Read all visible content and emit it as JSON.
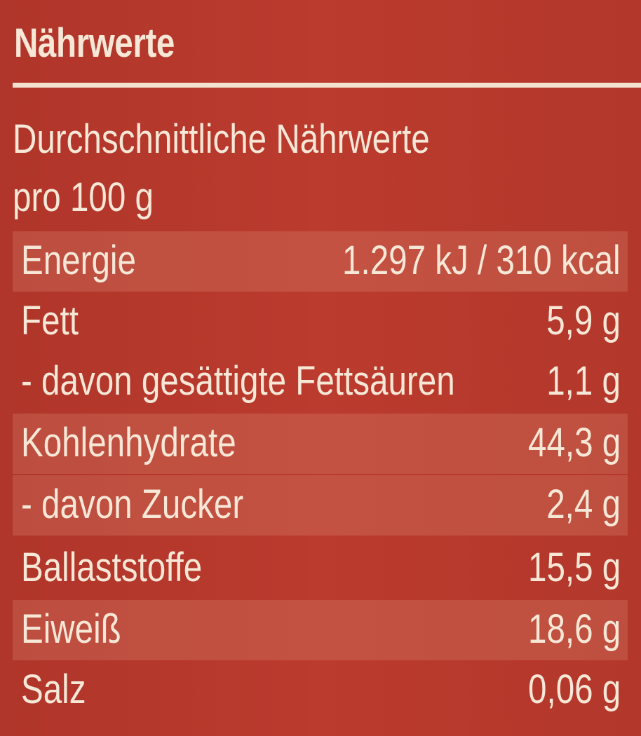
{
  "title": "Nährwerte",
  "subtitle_line1": "Durchschnittliche Nährwerte",
  "subtitle_line2": "pro 100 g",
  "colors": {
    "background": "#b5382c",
    "text": "#f6e7d6",
    "shaded_row": "#c05a4a"
  },
  "rows": [
    {
      "label": "Energie",
      "value": "1.297 kJ / 310 kcal",
      "shaded": true
    },
    {
      "label": "Fett",
      "value": "5,9 g",
      "shaded": false
    },
    {
      "label": "- davon gesättigte Fettsäuren",
      "value": "1,1 g",
      "shaded": false
    },
    {
      "label": "Kohlenhydrate",
      "value": "44,3 g",
      "shaded": true
    },
    {
      "label": "- davon Zucker",
      "value": "2,4 g",
      "shaded": true
    },
    {
      "label": "Ballaststoffe",
      "value": "15,5 g",
      "shaded": false
    },
    {
      "label": "Eiweiß",
      "value": "18,6 g",
      "shaded": true
    },
    {
      "label": "Salz",
      "value": "0,06 g",
      "shaded": false
    }
  ]
}
